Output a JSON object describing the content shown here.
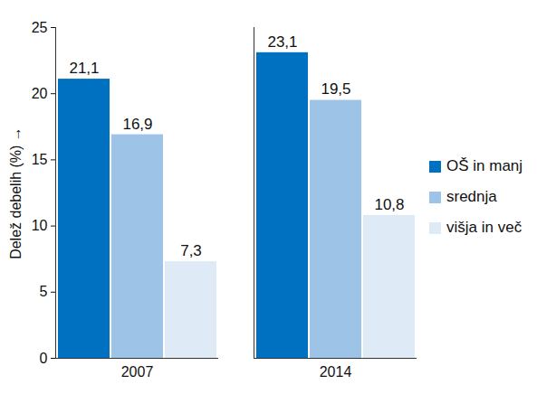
{
  "chart_data": {
    "type": "bar",
    "y_label": "Delež debelih (%)",
    "categories": [
      "2007",
      "2014"
    ],
    "series": [
      {
        "name": "OŠ in manj",
        "color": "#0070c0",
        "values": [
          21.1,
          23.1
        ],
        "value_labels": [
          "21,1",
          "23,1"
        ]
      },
      {
        "name": "srednja",
        "color": "#9dc3e6",
        "values": [
          16.9,
          19.5
        ],
        "value_labels": [
          "16,9",
          "19,5"
        ]
      },
      {
        "name": "višja in več",
        "color": "#deebf7",
        "values": [
          7.3,
          10.8
        ],
        "value_labels": [
          "7,3",
          "10,8"
        ]
      }
    ],
    "ylim": [
      0,
      25
    ],
    "yticks": [
      0,
      5,
      10,
      15,
      20,
      25
    ],
    "grid": false,
    "legend": "right",
    "data_labels": true
  }
}
